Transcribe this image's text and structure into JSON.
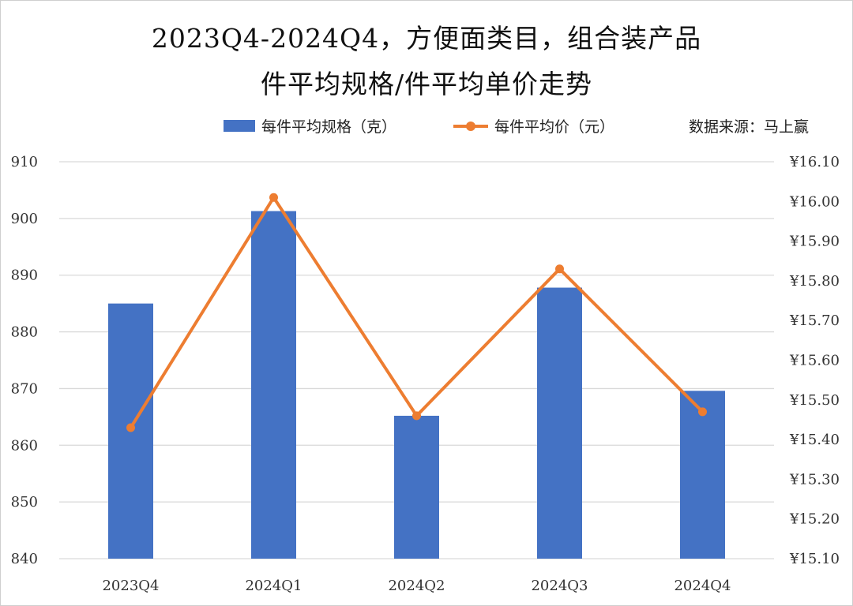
{
  "title_line1": "2023Q4-2024Q4，方便面类目，组合装产品",
  "title_line2": "件平均规格/件平均单价走势",
  "source_note": "数据来源：马上赢",
  "colors": {
    "bar": "#4472C4",
    "line": "#ED7D31",
    "grid": "#d9d9d9"
  },
  "chart_data": {
    "type": "bar+line",
    "categories": [
      "2023Q4",
      "2024Q1",
      "2024Q2",
      "2024Q3",
      "2024Q4"
    ],
    "series": [
      {
        "name": "每件平均规格（克）",
        "type": "bar",
        "axis": "left",
        "values": [
          885.0,
          901.3,
          865.2,
          887.8,
          869.6
        ]
      },
      {
        "name": "每件平均价（元）",
        "type": "line",
        "axis": "right",
        "values": [
          15.43,
          16.01,
          15.46,
          15.83,
          15.47
        ]
      }
    ],
    "left_axis": {
      "min": 840,
      "max": 910,
      "step": 10,
      "ticks": [
        "840",
        "850",
        "860",
        "870",
        "880",
        "890",
        "900",
        "910"
      ]
    },
    "right_axis": {
      "min": 15.1,
      "max": 16.1,
      "step": 0.1,
      "ticks": [
        "¥15.10",
        "¥15.20",
        "¥15.30",
        "¥15.40",
        "¥15.50",
        "¥15.60",
        "¥15.70",
        "¥15.80",
        "¥15.90",
        "¥16.00",
        "¥16.10"
      ]
    },
    "grid": true,
    "legend_position": "top"
  }
}
